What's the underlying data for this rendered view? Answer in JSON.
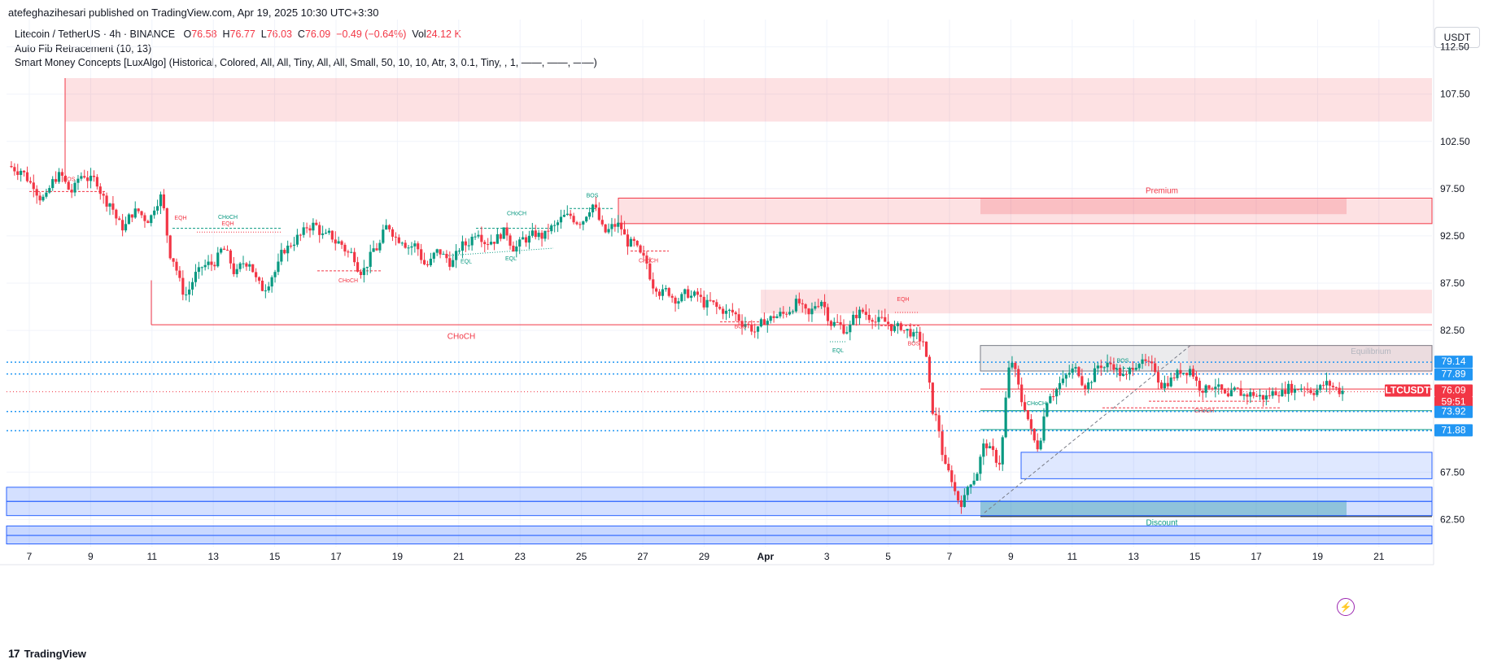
{
  "header": {
    "publisher": "atefeghazihesari published on TradingView.com, Apr 19, 2025 10:30 UTC+3:30"
  },
  "legend": {
    "symbol": "Litecoin / TetherUS · 4h · BINANCE",
    "o_label": "O",
    "o": "76.58",
    "h_label": "H",
    "h": "76.77",
    "l_label": "L",
    "l": "76.03",
    "c_label": "C",
    "c": "76.09",
    "change": "−0.49 (−0.64%)",
    "vol_label": "Vol",
    "vol": "24.12 K",
    "indicator1": "Auto Fib Retracement (10, 13)",
    "indicator2": "Smart Money Concepts [LuxAlgo] (Historical, Colored, All, All, Tiny, All, All, Small, 50, 10, 10, Atr, 3, 0.1, Tiny, , 1, ——, ——, ——)"
  },
  "currency": "USDT",
  "footer": {
    "brand": "TradingView",
    "logo": "17"
  },
  "chart_data": {
    "type": "candlestick",
    "title": "Litecoin / TetherUS · 4h · BINANCE",
    "y_ticks": [
      112.5,
      107.5,
      102.5,
      97.5,
      92.5,
      87.5,
      82.5,
      67.5,
      62.5
    ],
    "ylim": [
      59.6,
      115.4
    ],
    "x_ticks": [
      "7",
      "9",
      "11",
      "13",
      "15",
      "17",
      "19",
      "21",
      "23",
      "25",
      "27",
      "29",
      "Apr",
      "3",
      "5",
      "7",
      "9",
      "11",
      "13",
      "15",
      "17",
      "19",
      "21"
    ],
    "price_labels": [
      {
        "text": "79.14",
        "value": 79.14,
        "color": "#2196f3"
      },
      {
        "text": "77.89",
        "value": 77.89,
        "color": "#2196f3"
      },
      {
        "text": "LTCUSDT",
        "value": 76.09,
        "color": "#f23645"
      },
      {
        "text": "76.09",
        "value": 76.09,
        "color": "#f23645"
      },
      {
        "text": "59:51",
        "value": 76.09,
        "color": "#f23645"
      },
      {
        "text": "73.92",
        "value": 73.92,
        "color": "#2196f3"
      },
      {
        "text": "71.88",
        "value": 71.88,
        "color": "#2196f3"
      }
    ],
    "zones": [
      {
        "name": "Premium",
        "y1": 96.5,
        "y2": 93.8,
        "color": "#f23645"
      },
      {
        "name": "Equilibrium",
        "y1": 80.9,
        "y2": 77.8,
        "color": "#787b86"
      },
      {
        "name": "Discount",
        "y1": 69.6,
        "y2": 62.8,
        "color": "#2962ff"
      }
    ],
    "annotations": [
      "BOS",
      "EQH",
      "CHoCH",
      "EQH",
      "CHoCH",
      "EQL",
      "EQL",
      "CHoCH",
      "BOS",
      "CHoCH",
      "CHoCH",
      "BOS",
      "EQH",
      "BOS",
      "EQL",
      "BOS",
      "CHoCH",
      "CHoCH",
      "Premium",
      "Equilibrium",
      "Discount"
    ],
    "close_path": [
      99.5,
      98.0,
      96.5,
      98.8,
      97.2,
      99.0,
      98.3,
      96.0,
      93.5,
      95.0,
      94.3,
      96.6,
      90.0,
      86.3,
      88.6,
      89.5,
      91.0,
      88.5,
      89.8,
      87.0,
      88.7,
      91.2,
      92.5,
      93.6,
      92.4,
      91.8,
      90.6,
      88.9,
      91.2,
      93.5,
      92.2,
      91.5,
      89.4,
      90.8,
      89.7,
      91.6,
      93.1,
      92.0,
      92.8,
      91.3,
      92.2,
      92.5,
      93.4,
      94.5,
      94.1,
      95.8,
      92.9,
      93.6,
      91.6,
      90.0,
      87.2,
      86.6,
      85.9,
      86.1,
      85.2,
      84.7,
      84.4,
      83.3,
      82.4,
      83.7,
      84.2,
      85.3,
      84.0,
      85.7,
      83.2,
      82.6,
      84.3,
      84.0,
      83.4,
      82.7,
      82.4,
      81.4,
      73.2,
      67.4,
      64.4,
      66.9,
      70.5,
      68.6,
      79.2,
      74.5,
      70.3,
      75.9,
      77.0,
      78.3,
      76.8,
      78.9,
      78.9,
      77.5,
      79.3,
      78.5,
      76.8,
      77.8,
      78.4,
      76.4,
      76.8,
      75.2,
      75.9,
      75.8,
      75.4,
      76.1,
      76.5,
      76.6,
      76.2,
      76.8,
      76.09
    ]
  }
}
